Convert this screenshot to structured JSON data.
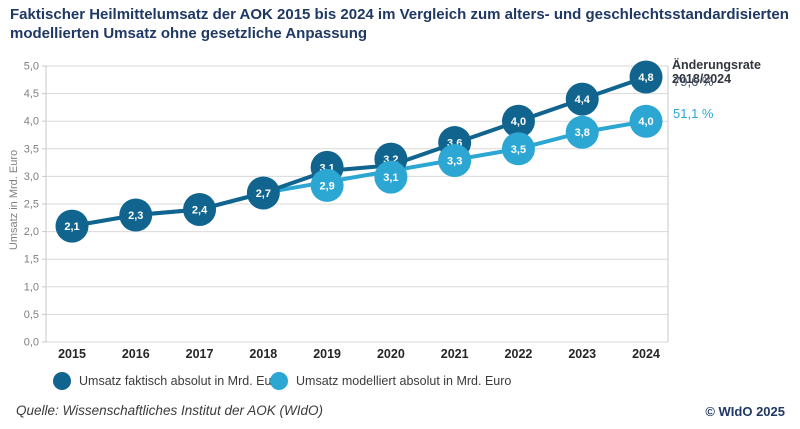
{
  "title": "Faktischer Heilmittelumsatz der AOK 2015 bis 2024 im Vergleich zum alters- und geschlechtsstandardisierten modellierten Umsatz ohne gesetzliche Anpassung",
  "chart_data": {
    "type": "line",
    "categories": [
      "2015",
      "2016",
      "2017",
      "2018",
      "2019",
      "2020",
      "2021",
      "2022",
      "2023",
      "2024"
    ],
    "series": [
      {
        "name": "Umsatz faktisch absolut in Mrd. Euro",
        "color": "#11648E",
        "values": [
          2.1,
          2.3,
          2.4,
          2.7,
          3.1,
          3.2,
          3.6,
          4.0,
          4.4,
          4.8
        ],
        "labels": [
          "2,1",
          "2,3",
          "2,4",
          "2,7",
          "3,1",
          "3,2",
          "3,6",
          "4,0",
          "4,4",
          "4,8"
        ]
      },
      {
        "name": "Umsatz modelliert absolut in Mrd. Euro",
        "color": "#2CA6D3",
        "values": [
          2.1,
          2.3,
          2.4,
          2.7,
          2.9,
          3.1,
          3.3,
          3.5,
          3.8,
          4.0
        ],
        "labels": [
          "2,1",
          "2,3",
          "2,4",
          "2,7",
          "2,9",
          "3,1",
          "3,3",
          "3,5",
          "3,8",
          "4,0"
        ]
      }
    ],
    "xlabel": "",
    "ylabel": "Umsatz in Mrd. Euro",
    "ylim": [
      0,
      5
    ],
    "ytick_step": 0.5,
    "ytick_labels": [
      "0,0",
      "0,5",
      "1,0",
      "1,5",
      "2,0",
      "2,5",
      "3,0",
      "3,5",
      "4,0",
      "4,5",
      "5,0"
    ],
    "grid": true,
    "legend_position": "bottom",
    "annotation": {
      "header": "Änderungsrate 2018/2024",
      "rates": [
        {
          "series": "faktisch",
          "text": "79,6 %",
          "color": "#44546A"
        },
        {
          "series": "modelliert",
          "text": "51,1 %",
          "color": "#2CA6D3"
        }
      ]
    },
    "colors": {
      "grid": "#D9D9D9",
      "axis_border": "#C9C9C9",
      "ytick_text": "#808080",
      "xtick_text": "#262626",
      "point_label_text": "#FFFFFF"
    }
  },
  "legend": [
    {
      "label": "Umsatz faktisch absolut in Mrd. Euro",
      "color": "#11648E"
    },
    {
      "label": "Umsatz modelliert absolut in Mrd. Euro",
      "color": "#2CA6D3"
    }
  ],
  "source": "Quelle: Wissenschaftliches Institut der AOK (WIdO)",
  "copyright": "© WIdO 2025"
}
